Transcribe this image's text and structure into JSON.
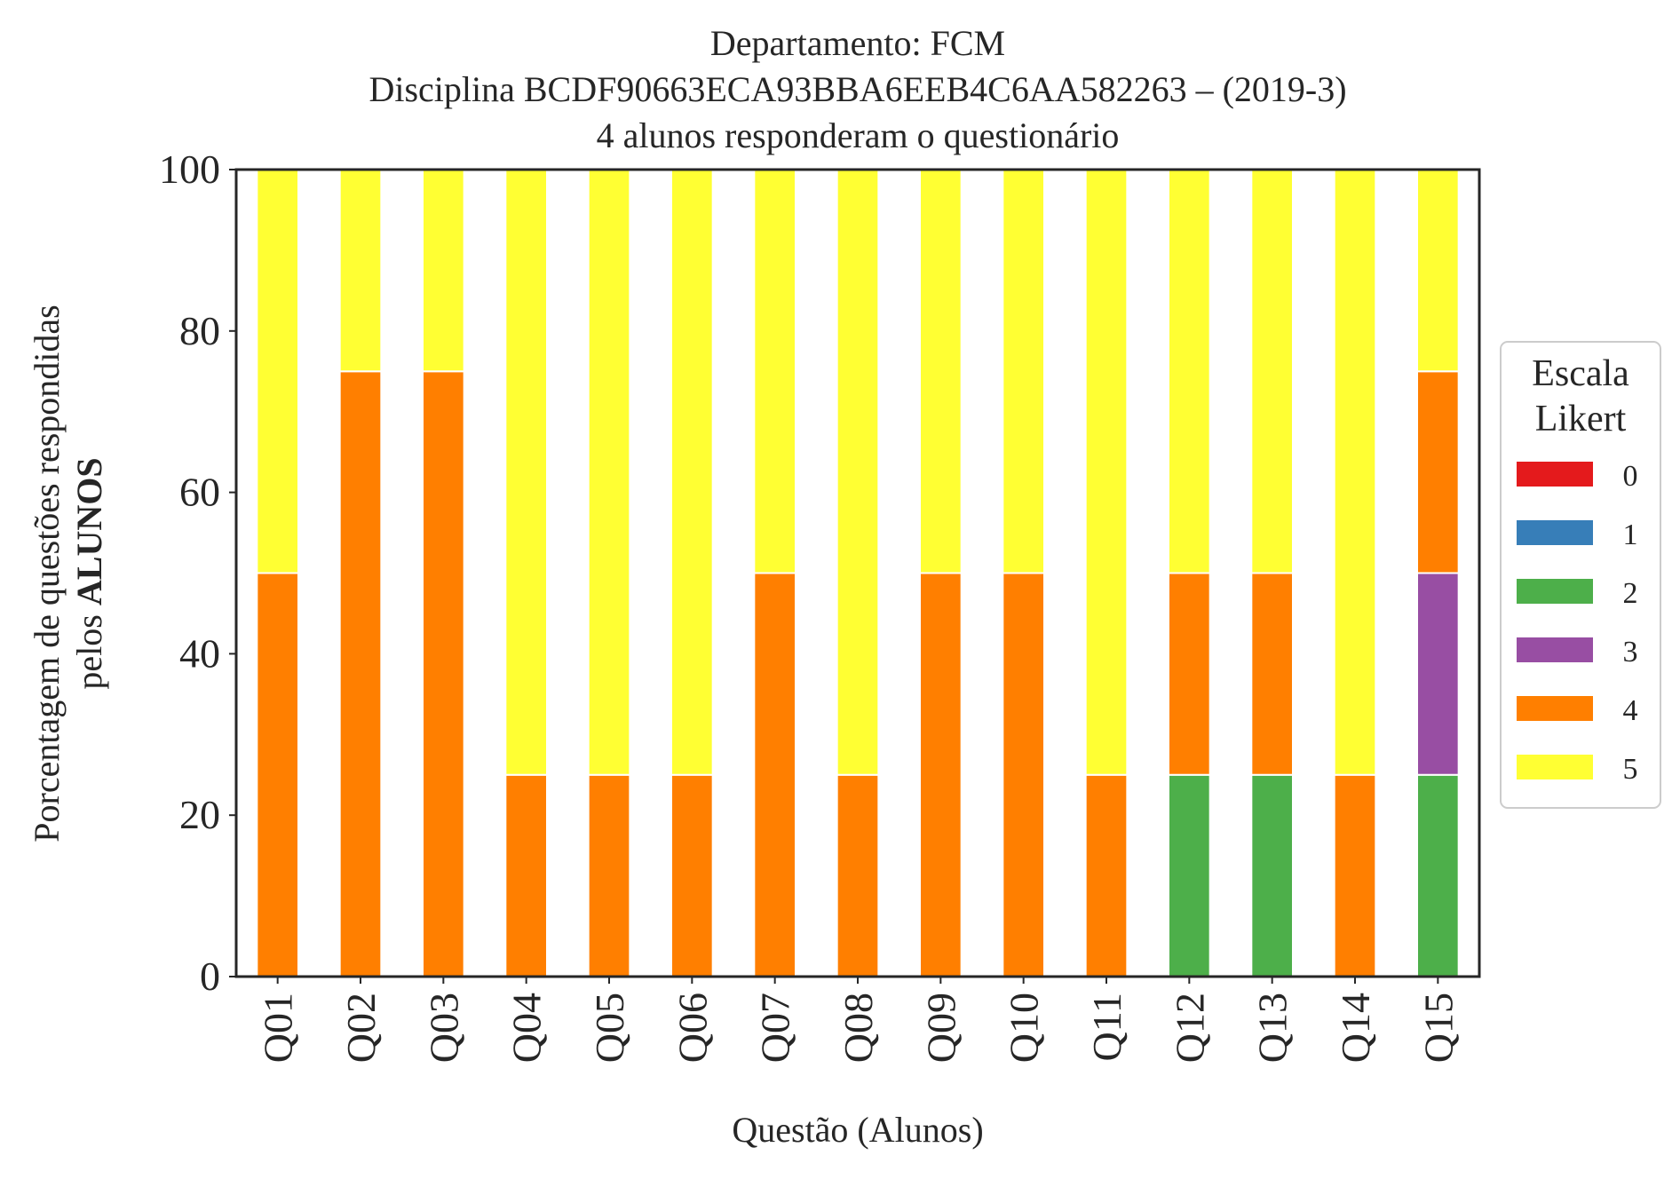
{
  "chart_data": {
    "type": "bar",
    "stacked": true,
    "title_lines": [
      "Departamento: FCM",
      "Disciplina BCDF90663ECA93BBA6EEB4C6AA582263 – (2019-3)",
      "4 alunos responderam o questionário"
    ],
    "xlabel": "Questão (Alunos)",
    "ylabel_line1": "Porcentagem de questões respondidas",
    "ylabel_line2_prefix": "pelos ",
    "ylabel_line2_bold": "ALUNOS",
    "ylim": [
      0,
      100
    ],
    "yticks": [
      "0",
      "20",
      "40",
      "60",
      "80",
      "100"
    ],
    "grid": false,
    "categories": [
      "Q01",
      "Q02",
      "Q03",
      "Q04",
      "Q05",
      "Q06",
      "Q07",
      "Q08",
      "Q09",
      "Q10",
      "Q11",
      "Q12",
      "Q13",
      "Q14",
      "Q15"
    ],
    "series": [
      {
        "name": "0",
        "color": "#e41a1c",
        "values": [
          0,
          0,
          0,
          0,
          0,
          0,
          0,
          0,
          0,
          0,
          0,
          0,
          0,
          0,
          0
        ]
      },
      {
        "name": "1",
        "color": "#377eb8",
        "values": [
          0,
          0,
          0,
          0,
          0,
          0,
          0,
          0,
          0,
          0,
          0,
          0,
          0,
          0,
          0
        ]
      },
      {
        "name": "2",
        "color": "#4daf4a",
        "values": [
          0,
          0,
          0,
          0,
          0,
          0,
          0,
          0,
          0,
          0,
          0,
          25,
          25,
          0,
          25
        ]
      },
      {
        "name": "3",
        "color": "#984ea3",
        "values": [
          0,
          0,
          0,
          0,
          0,
          0,
          0,
          0,
          0,
          0,
          0,
          0,
          0,
          0,
          25
        ]
      },
      {
        "name": "4",
        "color": "#ff7f00",
        "values": [
          50,
          75,
          75,
          25,
          25,
          25,
          50,
          25,
          50,
          50,
          25,
          25,
          25,
          25,
          25
        ]
      },
      {
        "name": "5",
        "color": "#ffff33",
        "values": [
          50,
          25,
          25,
          75,
          75,
          75,
          50,
          75,
          50,
          50,
          75,
          50,
          50,
          75,
          25
        ]
      }
    ],
    "legend": {
      "title_lines": [
        "Escala",
        "Likert"
      ],
      "placement": "right-center"
    }
  }
}
